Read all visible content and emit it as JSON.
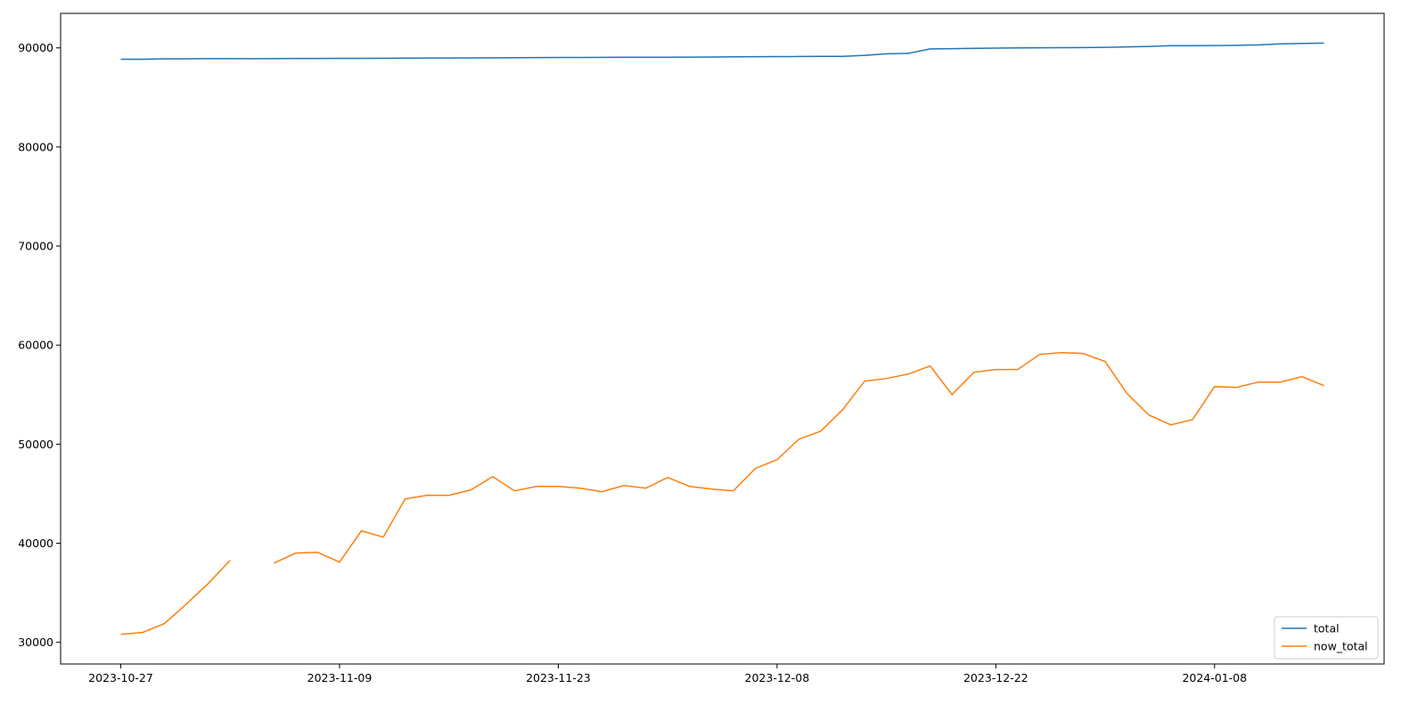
{
  "chart_data": {
    "type": "line",
    "categories": [
      "2023-10-27",
      null,
      null,
      null,
      null,
      null,
      null,
      null,
      null,
      null,
      "2023-11-09",
      null,
      null,
      null,
      null,
      null,
      null,
      null,
      null,
      null,
      "2023-11-23",
      null,
      null,
      null,
      null,
      null,
      null,
      null,
      null,
      null,
      "2023-12-08",
      null,
      null,
      null,
      null,
      null,
      null,
      null,
      null,
      null,
      "2023-12-22",
      null,
      null,
      null,
      null,
      null,
      null,
      null,
      null,
      null,
      "2024-01-08",
      null,
      null,
      null,
      null,
      null
    ],
    "series": [
      {
        "name": "total",
        "color": "#1f77b4",
        "values": [
          88850,
          88850,
          88900,
          88900,
          88920,
          88920,
          88910,
          88920,
          88930,
          88930,
          88940,
          88940,
          88950,
          88970,
          88980,
          88980,
          88990,
          89000,
          89010,
          89020,
          89030,
          89030,
          89040,
          89050,
          89060,
          89060,
          89070,
          89080,
          89100,
          89110,
          89120,
          89130,
          89140,
          89150,
          89250,
          89400,
          89450,
          89900,
          89920,
          89950,
          89980,
          90000,
          90010,
          90020,
          90030,
          90050,
          90100,
          90150,
          90220,
          90220,
          90240,
          90260,
          90300,
          90400,
          90450,
          90480
        ]
      },
      {
        "name": "now_total",
        "color": "#ff7f0e",
        "values": [
          30810,
          31000,
          31900,
          33870,
          35940,
          38280,
          null,
          38000,
          39000,
          39090,
          38100,
          41250,
          40620,
          44480,
          44840,
          44840,
          45380,
          46730,
          45290,
          45740,
          45740,
          45560,
          45200,
          45830,
          45560,
          46640,
          45740,
          45470,
          45290,
          47540,
          48440,
          50510,
          51320,
          53480,
          56360,
          56630,
          57080,
          57890,
          55010,
          57260,
          57530,
          57530,
          59060,
          59240,
          59150,
          58340,
          55100,
          52940,
          51950,
          52490,
          55820,
          55730,
          56270,
          56270,
          56810,
          55910
        ]
      }
    ],
    "ylim": [
      27815,
      93485
    ],
    "yticks": [
      30000,
      40000,
      50000,
      60000,
      70000,
      80000,
      90000
    ],
    "legend": "lower right"
  }
}
